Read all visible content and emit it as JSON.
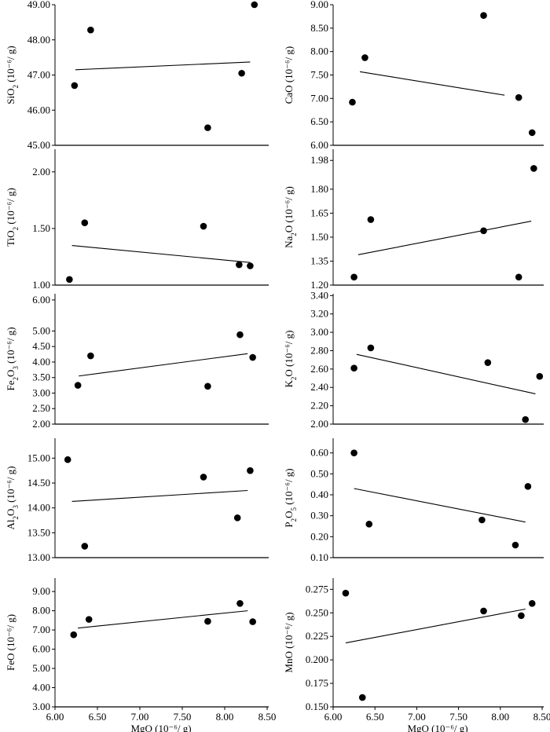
{
  "figure": {
    "x_axis_label": "MgO (10⁻⁶/ g)",
    "x_ticks": [
      "6.00",
      "6.50",
      "7.00",
      "7.50",
      "8.00",
      "8.50"
    ],
    "marker_color": "#000000",
    "line_color": "#000000"
  },
  "chart_data": [
    {
      "type": "scatter",
      "oxide": "SiO",
      "subscript": "2",
      "ylabel_units": "(10⁻⁶/ g)",
      "ylim": [
        45.0,
        49.0
      ],
      "yticks": [
        "45.00",
        "46.00",
        "47.00",
        "48.00",
        "49.00"
      ],
      "xlim": [
        6.0,
        8.5
      ],
      "points": [
        [
          6.23,
          46.7
        ],
        [
          6.42,
          48.28
        ],
        [
          7.8,
          45.5
        ],
        [
          8.2,
          47.05
        ],
        [
          8.35,
          49.0
        ]
      ],
      "trend": [
        [
          6.24,
          47.15
        ],
        [
          8.3,
          47.37
        ]
      ]
    },
    {
      "type": "scatter",
      "oxide": "CaO",
      "subscript": "",
      "ylabel_units": "(10⁻⁶/ g)",
      "ylim": [
        6.0,
        9.0
      ],
      "yticks": [
        "6.00",
        "6.50",
        "7.00",
        "7.50",
        "8.00",
        "8.50",
        "9.00"
      ],
      "xlim": [
        6.0,
        8.5
      ],
      "points": [
        [
          6.23,
          6.92
        ],
        [
          6.38,
          7.87
        ],
        [
          7.8,
          8.77
        ],
        [
          8.22,
          7.02
        ],
        [
          8.38,
          6.27
        ]
      ],
      "trend": [
        [
          6.32,
          7.57
        ],
        [
          8.05,
          7.07
        ]
      ]
    },
    {
      "type": "scatter",
      "oxide": "TiO",
      "subscript": "2",
      "ylabel_units": "(10⁻⁶/ g)",
      "ylim": [
        1.0,
        2.2
      ],
      "yticks": [
        "1.00",
        "1.50",
        "2.00"
      ],
      "xlim": [
        6.0,
        8.5
      ],
      "points": [
        [
          6.17,
          1.05
        ],
        [
          6.35,
          1.55
        ],
        [
          7.75,
          1.52
        ],
        [
          8.17,
          1.18
        ],
        [
          8.3,
          1.17
        ]
      ],
      "trend": [
        [
          6.2,
          1.35
        ],
        [
          8.3,
          1.2
        ]
      ]
    },
    {
      "type": "scatter",
      "oxide": "Na",
      "subscript": "2",
      "suffix": "O",
      "ylabel_units": "(10⁻⁶/ g)",
      "ylim": [
        1.2,
        2.05
      ],
      "yticks": [
        "1.20",
        "1.35",
        "1.50",
        "1.65",
        "1.80",
        "1.98"
      ],
      "xlim": [
        6.0,
        8.5
      ],
      "points": [
        [
          6.25,
          1.25
        ],
        [
          6.45,
          1.61
        ],
        [
          7.8,
          1.54
        ],
        [
          8.22,
          1.25
        ],
        [
          8.4,
          1.93
        ]
      ],
      "trend": [
        [
          6.3,
          1.39
        ],
        [
          8.37,
          1.6
        ]
      ]
    },
    {
      "type": "scatter",
      "oxide": "Fe",
      "subscript": "2",
      "suffix": "O",
      "subscript2": "3",
      "ylabel_units": "(10⁻⁶/ g)",
      "ylim": [
        2.0,
        6.2
      ],
      "yticks": [
        "2.00",
        "2.50",
        "3.00",
        "3.50",
        "4.00",
        "4.50",
        "5.00",
        "6.00"
      ],
      "xlim": [
        6.0,
        8.5
      ],
      "points": [
        [
          6.27,
          3.25
        ],
        [
          6.42,
          4.2
        ],
        [
          7.8,
          3.22
        ],
        [
          8.18,
          4.88
        ],
        [
          8.33,
          4.15
        ]
      ],
      "trend": [
        [
          6.28,
          3.55
        ],
        [
          8.27,
          4.27
        ]
      ]
    },
    {
      "type": "scatter",
      "oxide": "K",
      "subscript": "2",
      "suffix": "O",
      "ylabel_units": "(10⁻⁶/ g)",
      "ylim": [
        2.0,
        3.42
      ],
      "yticks": [
        "2.00",
        "2.20",
        "2.40",
        "2.60",
        "2.80",
        "3.00",
        "3.20",
        "3.40"
      ],
      "xlim": [
        6.0,
        8.5
      ],
      "points": [
        [
          6.25,
          2.61
        ],
        [
          6.45,
          2.83
        ],
        [
          7.85,
          2.67
        ],
        [
          8.3,
          2.05
        ],
        [
          8.47,
          2.52
        ]
      ],
      "trend": [
        [
          6.28,
          2.76
        ],
        [
          8.42,
          2.33
        ]
      ]
    },
    {
      "type": "scatter",
      "oxide": "Al",
      "subscript": "2",
      "suffix": "O",
      "subscript2": "3",
      "ylabel_units": "(10⁻⁶/ g)",
      "ylim": [
        13.0,
        15.4
      ],
      "yticks": [
        "13.00",
        "13.50",
        "14.00",
        "14.50",
        "15.00"
      ],
      "xlim": [
        6.0,
        8.5
      ],
      "points": [
        [
          6.15,
          14.97
        ],
        [
          6.35,
          13.23
        ],
        [
          7.75,
          14.62
        ],
        [
          8.15,
          13.8
        ],
        [
          8.3,
          14.75
        ]
      ],
      "trend": [
        [
          6.2,
          14.13
        ],
        [
          8.27,
          14.35
        ]
      ]
    },
    {
      "type": "scatter",
      "oxide": "P",
      "subscript": "2",
      "suffix": "O",
      "subscript2": "5",
      "ylabel_units": "(10⁻⁶/ g)",
      "ylim": [
        0.1,
        0.67
      ],
      "yticks": [
        "0.10",
        "0.20",
        "0.30",
        "0.40",
        "0.50",
        "0.60"
      ],
      "xlim": [
        6.0,
        8.5
      ],
      "points": [
        [
          6.25,
          0.6
        ],
        [
          6.43,
          0.26
        ],
        [
          7.78,
          0.28
        ],
        [
          8.18,
          0.16
        ],
        [
          8.33,
          0.44
        ]
      ],
      "trend": [
        [
          6.25,
          0.43
        ],
        [
          8.3,
          0.27
        ]
      ]
    },
    {
      "type": "scatter",
      "oxide": "FeO",
      "subscript": "",
      "ylabel_units": "(10⁻⁶/ g)",
      "ylim": [
        3.0,
        9.7
      ],
      "yticks": [
        "3.00",
        "4.00",
        "5.00",
        "6.00",
        "7.00",
        "8.00",
        "9.00"
      ],
      "xlim": [
        6.0,
        8.5
      ],
      "points": [
        [
          6.22,
          6.75
        ],
        [
          6.4,
          7.55
        ],
        [
          7.8,
          7.45
        ],
        [
          8.18,
          8.38
        ],
        [
          8.33,
          7.43
        ]
      ],
      "trend": [
        [
          6.27,
          7.1
        ],
        [
          8.27,
          8.0
        ]
      ]
    },
    {
      "type": "scatter",
      "oxide": "MnO",
      "subscript": "",
      "ylabel_units": "(10⁻⁶/ g)",
      "ylim": [
        0.15,
        0.287
      ],
      "yticks": [
        "0.150",
        "0.175",
        "0.200",
        "0.225",
        "0.250",
        "0.275"
      ],
      "xlim": [
        6.0,
        8.5
      ],
      "points": [
        [
          6.15,
          0.271
        ],
        [
          6.35,
          0.16
        ],
        [
          7.8,
          0.252
        ],
        [
          8.25,
          0.247
        ],
        [
          8.38,
          0.26
        ]
      ],
      "trend": [
        [
          6.15,
          0.218
        ],
        [
          8.3,
          0.254
        ]
      ]
    }
  ]
}
